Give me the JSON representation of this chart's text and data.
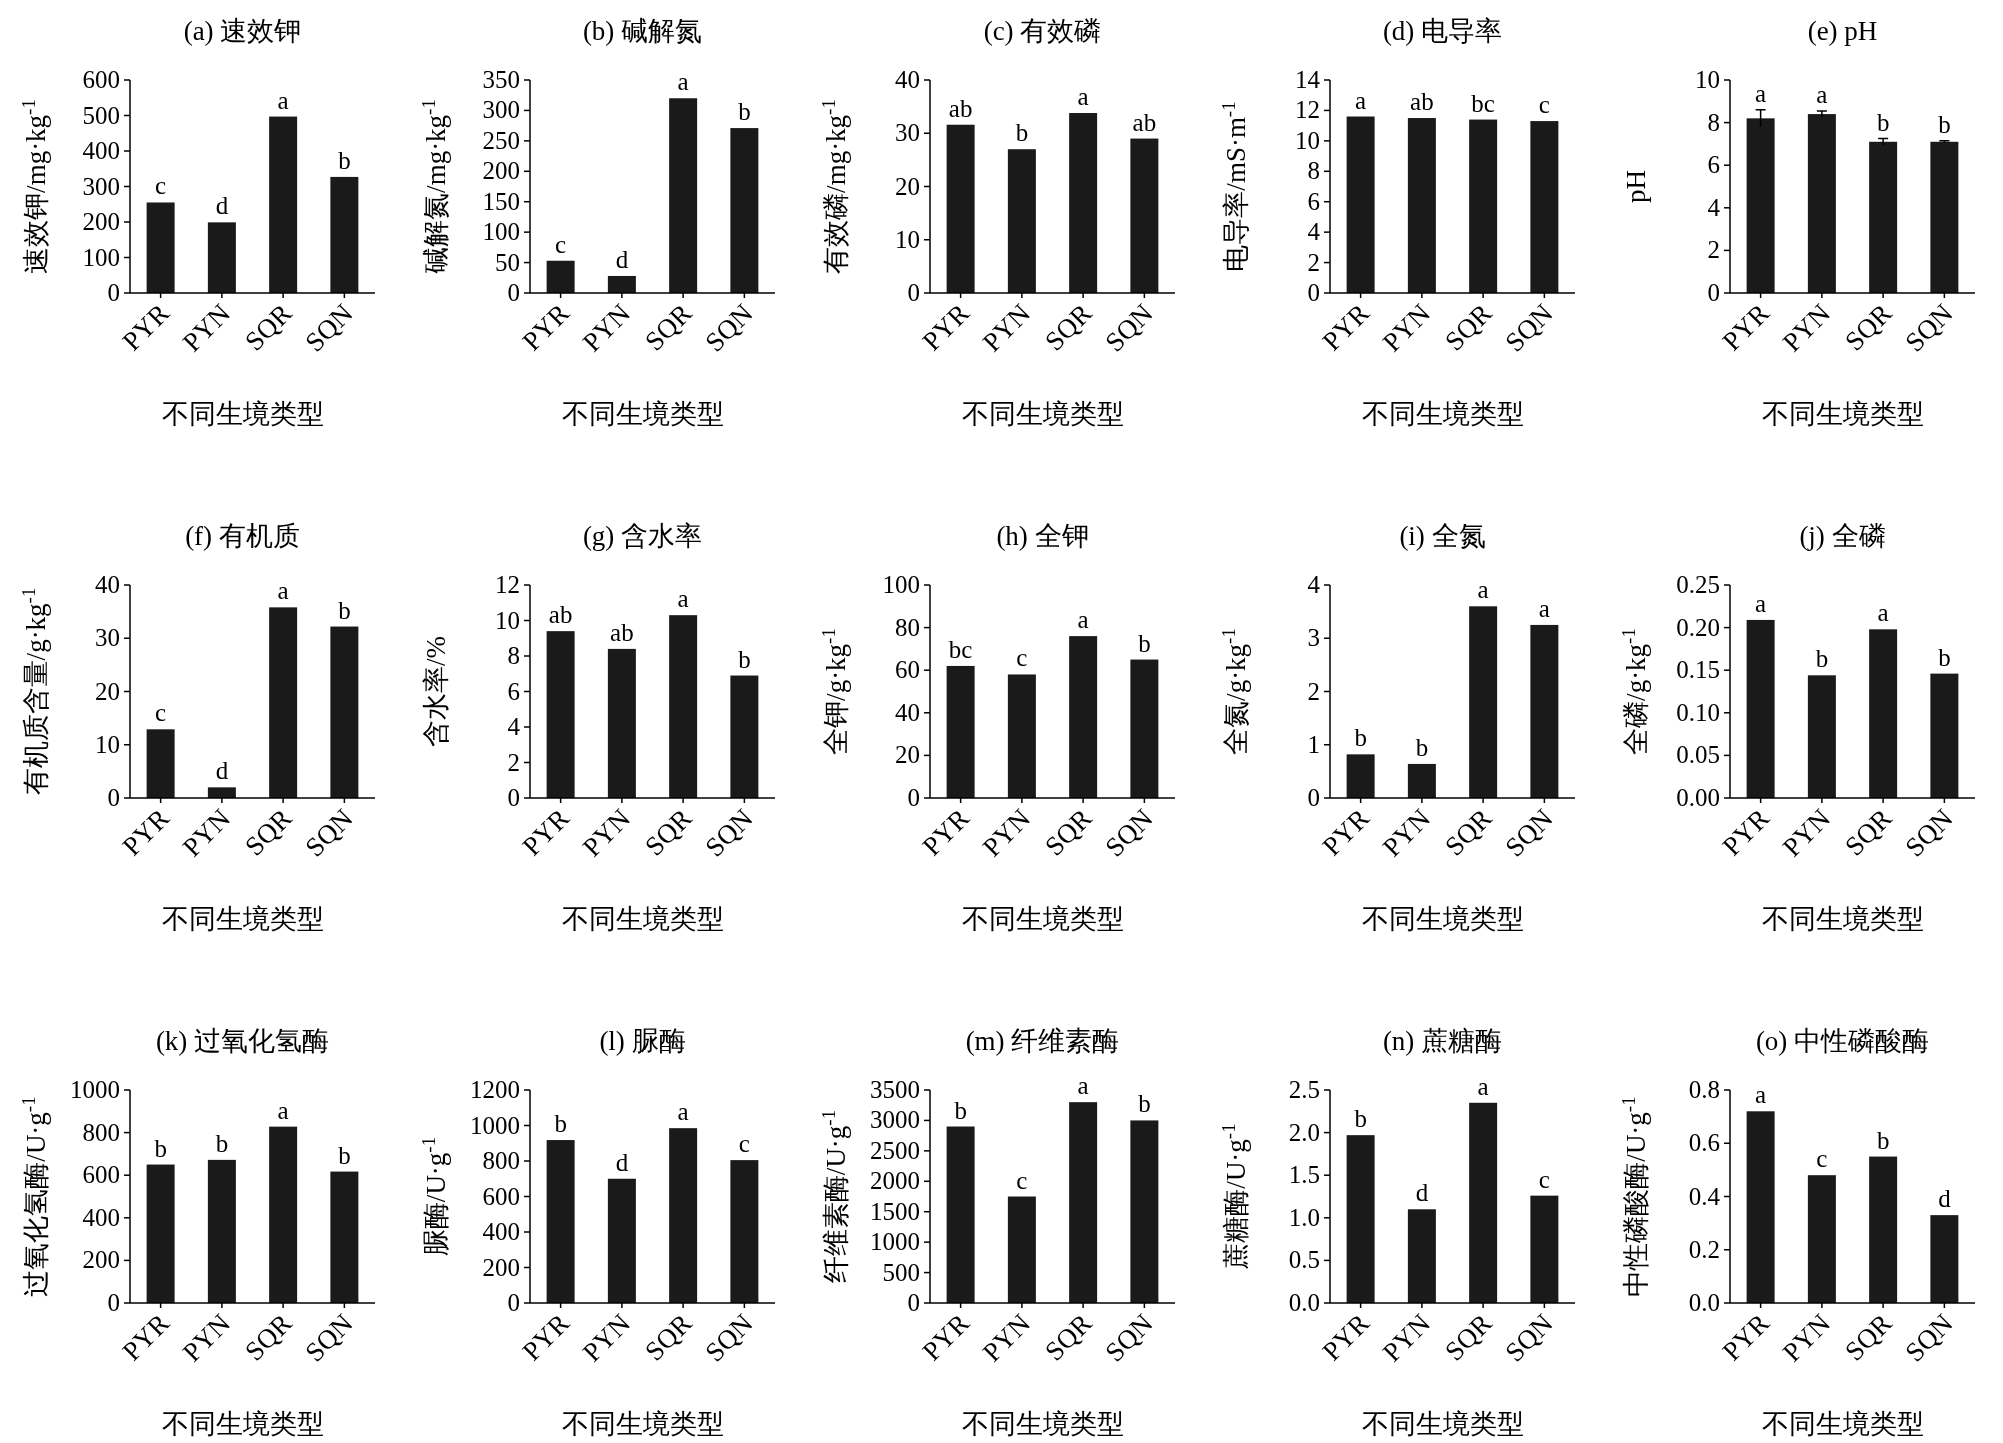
{
  "chart_data": [
    {
      "type": "bar",
      "title": "(a) 速效钾",
      "ylabel": "速效钾/mg·kg$^{-1}$",
      "xlabel": "不同生境类型",
      "categories": [
        "PYR",
        "PYN",
        "SQR",
        "SQN"
      ],
      "values": [
        255,
        199,
        497,
        327
      ],
      "color": "#1a1a1a",
      "ylim": [
        0,
        600
      ],
      "yticks": [
        0,
        100,
        200,
        300,
        400,
        500,
        600
      ],
      "annotations": [
        {
          "text": "c",
          "x": "PYR",
          "y": 255
        },
        {
          "text": "d",
          "x": "PYN",
          "y": 199
        },
        {
          "text": "a",
          "x": "SQR",
          "y": 497
        },
        {
          "text": "b",
          "x": "SQN",
          "y": 327
        }
      ]
    },
    {
      "type": "bar",
      "title": "(b) 碱解氮",
      "ylabel": "碱解氮/mg·kg$^{-1}$",
      "xlabel": "不同生境类型",
      "categories": [
        "PYR",
        "PYN",
        "SQR",
        "SQN"
      ],
      "values": [
        53,
        28,
        320,
        271
      ],
      "color": "#1a1a1a",
      "ylim": [
        0,
        350
      ],
      "yticks": [
        0,
        50,
        100,
        150,
        200,
        250,
        300,
        350
      ],
      "annotations": [
        {
          "text": "c",
          "x": "PYR",
          "y": 53
        },
        {
          "text": "d",
          "x": "PYN",
          "y": 28
        },
        {
          "text": "a",
          "x": "SQR",
          "y": 320
        },
        {
          "text": "b",
          "x": "SQN",
          "y": 271
        }
      ]
    },
    {
      "type": "bar",
      "title": "(c) 有效磷",
      "ylabel": "有效磷/mg·kg$^{-1}$",
      "xlabel": "不同生境类型",
      "categories": [
        "PYR",
        "PYN",
        "SQR",
        "SQN"
      ],
      "values": [
        31.6,
        27,
        33.8,
        29
      ],
      "color": "#1a1a1a",
      "ylim": [
        0,
        40
      ],
      "yticks": [
        0,
        10,
        20,
        30,
        40
      ],
      "annotations": [
        {
          "text": "ab",
          "x": "PYR",
          "y": 31.6
        },
        {
          "text": "b",
          "x": "PYN",
          "y": 27
        },
        {
          "text": "a",
          "x": "SQR",
          "y": 33.8
        },
        {
          "text": "ab",
          "x": "SQN",
          "y": 29
        }
      ]
    },
    {
      "type": "bar",
      "title": "(d) 电导率",
      "ylabel": "电导率/mS·m$^{-1}$",
      "xlabel": "不同生境类型",
      "categories": [
        "PYR",
        "PYN",
        "SQR",
        "SQN"
      ],
      "values": [
        11.6,
        11.5,
        11.4,
        11.3
      ],
      "color": "#1a1a1a",
      "ylim": [
        0,
        14
      ],
      "yticks": [
        0,
        2,
        4,
        6,
        8,
        10,
        12,
        14
      ],
      "annotations": [
        {
          "text": "a",
          "x": "PYR",
          "y": 11.6
        },
        {
          "text": "ab",
          "x": "PYN",
          "y": 11.5
        },
        {
          "text": "bc",
          "x": "SQR",
          "y": 11.4
        },
        {
          "text": "c",
          "x": "SQN",
          "y": 11.3
        }
      ]
    },
    {
      "type": "bar",
      "title": "(e) pH",
      "ylabel": "pH",
      "xlabel": "不同生境类型",
      "categories": [
        "PYR",
        "PYN",
        "SQR",
        "SQN"
      ],
      "values": [
        8.2,
        8.4,
        7.1,
        7.1
      ],
      "errors": [
        0.4,
        0.15,
        0.15,
        0.05
      ],
      "color": "#1a1a1a",
      "ylim": [
        0,
        10
      ],
      "yticks": [
        0,
        2,
        4,
        6,
        8,
        10
      ],
      "annotations": [
        {
          "text": "a",
          "x": "PYR",
          "y": 8.6
        },
        {
          "text": "a",
          "x": "PYN",
          "y": 8.55
        },
        {
          "text": "b",
          "x": "SQR",
          "y": 7.25
        },
        {
          "text": "b",
          "x": "SQN",
          "y": 7.15
        }
      ]
    },
    {
      "type": "bar",
      "title": "(f) 有机质",
      "ylabel": "有机质含量/g·kg$^{-1}$",
      "xlabel": "不同生境类型",
      "categories": [
        "PYR",
        "PYN",
        "SQR",
        "SQN"
      ],
      "values": [
        12.9,
        2,
        35.8,
        32.2
      ],
      "color": "#1a1a1a",
      "ylim": [
        0,
        40
      ],
      "yticks": [
        0,
        10,
        20,
        30,
        40
      ],
      "annotations": [
        {
          "text": "c",
          "x": "PYR",
          "y": 12.9
        },
        {
          "text": "d",
          "x": "PYN",
          "y": 2
        },
        {
          "text": "a",
          "x": "SQR",
          "y": 35.8
        },
        {
          "text": "b",
          "x": "SQN",
          "y": 32.2
        }
      ]
    },
    {
      "type": "bar",
      "title": "(g) 含水率",
      "ylabel": "含水率/%",
      "xlabel": "不同生境类型",
      "categories": [
        "PYR",
        "PYN",
        "SQR",
        "SQN"
      ],
      "values": [
        9.4,
        8.4,
        10.3,
        6.9
      ],
      "color": "#1a1a1a",
      "ylim": [
        0,
        12
      ],
      "yticks": [
        0,
        2,
        4,
        6,
        8,
        10,
        12
      ],
      "annotations": [
        {
          "text": "ab",
          "x": "PYR",
          "y": 9.4
        },
        {
          "text": "ab",
          "x": "PYN",
          "y": 8.4
        },
        {
          "text": "a",
          "x": "SQR",
          "y": 10.3
        },
        {
          "text": "b",
          "x": "SQN",
          "y": 6.9
        }
      ]
    },
    {
      "type": "bar",
      "title": "(h) 全钾",
      "ylabel": "全钾/g·kg$^{-1}$",
      "xlabel": "不同生境类型",
      "categories": [
        "PYR",
        "PYN",
        "SQR",
        "SQN"
      ],
      "values": [
        62,
        58,
        76,
        65
      ],
      "color": "#1a1a1a",
      "ylim": [
        0,
        100
      ],
      "yticks": [
        0,
        20,
        40,
        60,
        80,
        100
      ],
      "annotations": [
        {
          "text": "bc",
          "x": "PYR",
          "y": 62
        },
        {
          "text": "c",
          "x": "PYN",
          "y": 58
        },
        {
          "text": "a",
          "x": "SQR",
          "y": 76
        },
        {
          "text": "b",
          "x": "SQN",
          "y": 65
        }
      ]
    },
    {
      "type": "bar",
      "title": "(i) 全氮",
      "ylabel": "全氮/g·kg$^{-1}$",
      "xlabel": "不同生境类型",
      "categories": [
        "PYR",
        "PYN",
        "SQR",
        "SQN"
      ],
      "values": [
        0.82,
        0.64,
        3.6,
        3.25
      ],
      "color": "#1a1a1a",
      "ylim": [
        0,
        4
      ],
      "yticks": [
        0,
        1,
        2,
        3,
        4
      ],
      "annotations": [
        {
          "text": "b",
          "x": "PYR",
          "y": 0.82
        },
        {
          "text": "b",
          "x": "PYN",
          "y": 0.64
        },
        {
          "text": "a",
          "x": "SQR",
          "y": 3.6
        },
        {
          "text": "a",
          "x": "SQN",
          "y": 3.25
        }
      ]
    },
    {
      "type": "bar",
      "title": "(j) 全磷",
      "ylabel": "全磷/g·kg$^{-1}$",
      "xlabel": "不同生境类型",
      "categories": [
        "PYR",
        "PYN",
        "SQR",
        "SQN"
      ],
      "values": [
        0.209,
        0.144,
        0.198,
        0.146
      ],
      "color": "#1a1a1a",
      "ylim": [
        0,
        0.25
      ],
      "yticks": [
        {
          "value": 0,
          "label": "0.00"
        },
        {
          "value": 0.05,
          "label": "0.05"
        },
        {
          "value": 0.1,
          "label": "0.10"
        },
        {
          "value": 0.15,
          "label": "0.15"
        },
        {
          "value": 0.2,
          "label": "0.20"
        },
        {
          "value": 0.25,
          "label": "0.25"
        }
      ],
      "annotations": [
        {
          "text": "a",
          "x": "PYR",
          "y": 0.209
        },
        {
          "text": "b",
          "x": "PYN",
          "y": 0.144
        },
        {
          "text": "a",
          "x": "SQR",
          "y": 0.198
        },
        {
          "text": "b",
          "x": "SQN",
          "y": 0.146
        }
      ]
    },
    {
      "type": "bar",
      "title": "(k) 过氧化氢酶",
      "ylabel": "过氧化氢酶/U·g$^{-1}$",
      "xlabel": "不同生境类型",
      "categories": [
        "PYR",
        "PYN",
        "SQR",
        "SQN"
      ],
      "values": [
        650,
        672,
        828,
        617
      ],
      "color": "#1a1a1a",
      "ylim": [
        0,
        1000
      ],
      "yticks": [
        0,
        200,
        400,
        600,
        800,
        1000
      ],
      "annotations": [
        {
          "text": "b",
          "x": "PYR",
          "y": 650
        },
        {
          "text": "b",
          "x": "PYN",
          "y": 672
        },
        {
          "text": "a",
          "x": "SQR",
          "y": 828
        },
        {
          "text": "b",
          "x": "SQN",
          "y": 617
        }
      ]
    },
    {
      "type": "bar",
      "title": "(l) 脲酶",
      "ylabel": "脲酶/U·g$^{-1}$",
      "xlabel": "不同生境类型",
      "categories": [
        "PYR",
        "PYN",
        "SQR",
        "SQN"
      ],
      "values": [
        918,
        700,
        985,
        805
      ],
      "color": "#1a1a1a",
      "ylim": [
        0,
        1200
      ],
      "yticks": [
        0,
        200,
        400,
        600,
        800,
        1000,
        1200
      ],
      "annotations": [
        {
          "text": "b",
          "x": "PYR",
          "y": 918
        },
        {
          "text": "d",
          "x": "PYN",
          "y": 700
        },
        {
          "text": "a",
          "x": "SQR",
          "y": 985
        },
        {
          "text": "c",
          "x": "SQN",
          "y": 805
        }
      ]
    },
    {
      "type": "bar",
      "title": "(m) 纤维素酶",
      "ylabel": "纤维素酶/U·g$^{-1}$",
      "xlabel": "不同生境类型",
      "categories": [
        "PYR",
        "PYN",
        "SQR",
        "SQN"
      ],
      "values": [
        2900,
        1750,
        3300,
        3000
      ],
      "color": "#1a1a1a",
      "ylim": [
        0,
        3500
      ],
      "yticks": [
        0,
        500,
        1000,
        1500,
        2000,
        2500,
        3000,
        3500
      ],
      "annotations": [
        {
          "text": "b",
          "x": "PYR",
          "y": 2900
        },
        {
          "text": "c",
          "x": "PYN",
          "y": 1750
        },
        {
          "text": "a",
          "x": "SQR",
          "y": 3300
        },
        {
          "text": "b",
          "x": "SQN",
          "y": 3000
        }
      ]
    },
    {
      "type": "bar",
      "title": "(n) 蔗糖酶",
      "ylabel": "蔗糖酶/U·g$^{-1}$",
      "xlabel": "不同生境类型",
      "categories": [
        "PYR",
        "PYN",
        "SQR",
        "SQN"
      ],
      "values": [
        1.97,
        1.1,
        2.35,
        1.26
      ],
      "color": "#1a1a1a",
      "ylim": [
        0,
        2.5
      ],
      "yticks": [
        {
          "value": 0,
          "label": "0.0"
        },
        {
          "value": 0.5,
          "label": "0.5"
        },
        {
          "value": 1,
          "label": "1.0"
        },
        {
          "value": 1.5,
          "label": "1.5"
        },
        {
          "value": 2,
          "label": "2.0"
        },
        {
          "value": 2.5,
          "label": "2.5"
        }
      ],
      "annotations": [
        {
          "text": "b",
          "x": "PYR",
          "y": 1.97
        },
        {
          "text": "d",
          "x": "PYN",
          "y": 1.1
        },
        {
          "text": "a",
          "x": "SQR",
          "y": 2.35
        },
        {
          "text": "c",
          "x": "SQN",
          "y": 1.26
        }
      ]
    },
    {
      "type": "bar",
      "title": "(o) 中性磷酸酶",
      "ylabel": "中性磷酸酶/U·g$^{-1}$",
      "xlabel": "不同生境类型",
      "categories": [
        "PYR",
        "PYN",
        "SQR",
        "SQN"
      ],
      "values": [
        0.72,
        0.48,
        0.55,
        0.33
      ],
      "color": "#1a1a1a",
      "ylim": [
        0,
        0.8
      ],
      "yticks": [
        {
          "value": 0,
          "label": "0.0"
        },
        {
          "value": 0.2,
          "label": "0.2"
        },
        {
          "value": 0.4,
          "label": "0.4"
        },
        {
          "value": 0.6,
          "label": "0.6"
        },
        {
          "value": 0.8,
          "label": "0.8"
        }
      ],
      "annotations": [
        {
          "text": "a",
          "x": "PYR",
          "y": 0.72
        },
        {
          "text": "c",
          "x": "PYN",
          "y": 0.48
        },
        {
          "text": "b",
          "x": "SQR",
          "y": 0.55
        },
        {
          "text": "d",
          "x": "SQN",
          "y": 0.33
        }
      ]
    }
  ]
}
